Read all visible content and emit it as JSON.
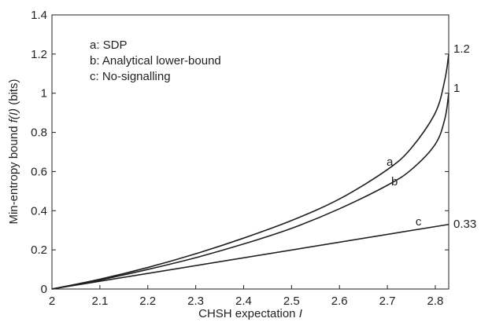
{
  "chart_data": {
    "type": "line",
    "xlabel_text": "CHSH expectation ",
    "xlabel_var": "I",
    "ylabel_pre": "Min-entropy bound ",
    "ylabel_var": "f(I)",
    "ylabel_post": " (bits)",
    "xlim": [
      2,
      2.828
    ],
    "ylim": [
      0,
      1.4
    ],
    "x_ticks": [
      "2",
      "2.1",
      "2.2",
      "2.3",
      "2.4",
      "2.5",
      "2.6",
      "2.7",
      "2.8"
    ],
    "y_ticks": [
      "0",
      "0.2",
      "0.4",
      "0.6",
      "0.8",
      "1",
      "1.2",
      "1.4"
    ],
    "legend": [
      "a: SDP",
      "b: Analytical lower-bound",
      "c: No-signalling"
    ],
    "series": [
      {
        "name": "a",
        "x": [
          2.0,
          2.1,
          2.2,
          2.3,
          2.4,
          2.5,
          2.6,
          2.7,
          2.75,
          2.8,
          2.82,
          2.828
        ],
        "y": [
          0.0,
          0.05,
          0.11,
          0.18,
          0.26,
          0.35,
          0.46,
          0.61,
          0.72,
          0.9,
          1.07,
          1.2
        ]
      },
      {
        "name": "b",
        "x": [
          2.0,
          2.1,
          2.2,
          2.3,
          2.4,
          2.5,
          2.6,
          2.7,
          2.75,
          2.8,
          2.82,
          2.828
        ],
        "y": [
          0.0,
          0.046,
          0.1,
          0.16,
          0.23,
          0.31,
          0.41,
          0.53,
          0.61,
          0.74,
          0.87,
          1.0
        ]
      },
      {
        "name": "c",
        "x": [
          2.0,
          2.828
        ],
        "y": [
          0.0,
          0.33
        ]
      }
    ],
    "curve_labels": [
      {
        "text": "a",
        "x": 2.705,
        "y": 0.63
      },
      {
        "text": "b",
        "x": 2.715,
        "y": 0.53
      },
      {
        "text": "c",
        "x": 2.765,
        "y": 0.325
      }
    ],
    "end_labels": [
      "1.2",
      "1",
      "0.33"
    ],
    "grid": false,
    "legend_placement": "top-left"
  }
}
